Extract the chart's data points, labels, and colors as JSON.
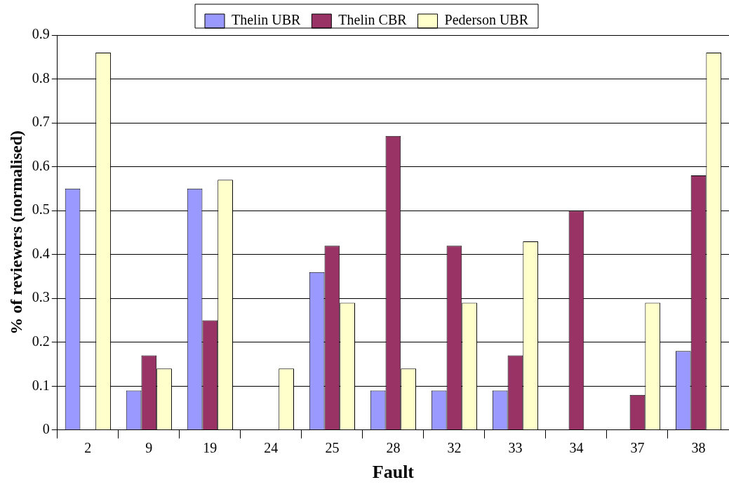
{
  "chart_data": {
    "type": "bar",
    "xlabel": "Fault",
    "ylabel": "% of reviewers (normalised)",
    "categories": [
      "2",
      "9",
      "19",
      "24",
      "25",
      "28",
      "32",
      "33",
      "34",
      "37",
      "38"
    ],
    "series": [
      {
        "name": "Thelin UBR",
        "color": "#9999ff",
        "values": [
          0.55,
          0.09,
          0.55,
          0,
          0.36,
          0.09,
          0.09,
          0.09,
          0,
          0,
          0.18
        ]
      },
      {
        "name": "Thelin CBR",
        "color": "#993366",
        "values": [
          0,
          0.17,
          0.25,
          0,
          0.42,
          0.67,
          0.42,
          0.17,
          0.5,
          0.08,
          0.58
        ]
      },
      {
        "name": "Pederson UBR",
        "color": "#ffffcc",
        "values": [
          0.86,
          0.14,
          0.57,
          0.14,
          0.29,
          0.14,
          0.29,
          0.43,
          0,
          0.29,
          0.86
        ]
      }
    ],
    "ylim": [
      0,
      0.9
    ],
    "yticks": [
      0,
      0.1,
      0.2,
      0.3,
      0.4,
      0.5,
      0.6,
      0.7,
      0.8,
      0.9
    ],
    "grid": "y",
    "legend": "top"
  }
}
